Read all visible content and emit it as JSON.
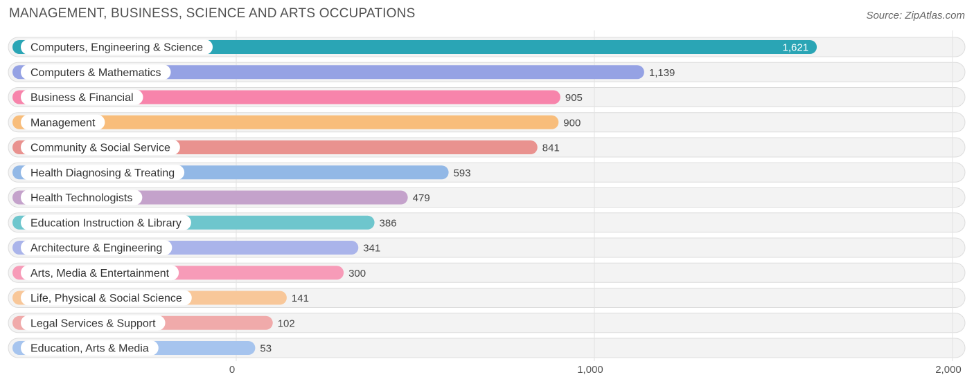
{
  "chart_data": {
    "type": "bar",
    "orientation": "horizontal",
    "title": "MANAGEMENT, BUSINESS, SCIENCE AND ARTS OCCUPATIONS",
    "source": "Source: ZipAtlas.com",
    "xlim": [
      0,
      2000
    ],
    "ticks": [
      {
        "value": 0,
        "label": "0"
      },
      {
        "value": 1000,
        "label": "1,000"
      },
      {
        "value": 2000,
        "label": "2,000"
      }
    ],
    "grid": true,
    "categories": [
      "Computers, Engineering & Science",
      "Computers & Mathematics",
      "Business & Financial",
      "Management",
      "Community & Social Service",
      "Health Diagnosing & Treating",
      "Health Technologists",
      "Education Instruction & Library",
      "Architecture & Engineering",
      "Arts, Media & Entertainment",
      "Life, Physical & Social Science",
      "Legal Services & Support",
      "Education, Arts & Media"
    ],
    "values": [
      1621,
      1139,
      905,
      900,
      841,
      593,
      479,
      386,
      341,
      300,
      141,
      102,
      53
    ],
    "value_labels": [
      "1,621",
      "1,139",
      "905",
      "900",
      "841",
      "593",
      "479",
      "386",
      "341",
      "300",
      "141",
      "102",
      "53"
    ],
    "colors": [
      "#2aa5b5",
      "#95a2e4",
      "#f784ab",
      "#f8bd7b",
      "#e9928f",
      "#92b8e6",
      "#c4a2cb",
      "#6ec6cd",
      "#aab4ea",
      "#f79bb8",
      "#f8c799",
      "#f0aaaa",
      "#a6c4ee"
    ]
  }
}
